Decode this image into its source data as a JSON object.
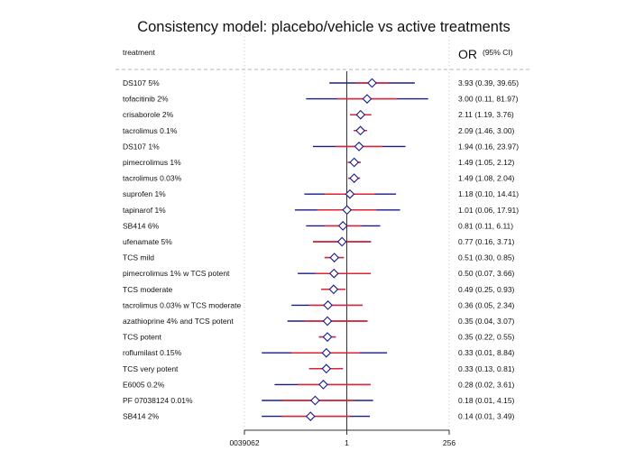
{
  "chart_data": {
    "type": "forest",
    "title": "Consistency model: placebo/vehicle vs active treatments",
    "column_header_left": "treatment",
    "column_header_or": "OR",
    "column_header_ci": "(95% CI)",
    "x_scale": "log2",
    "xlim_log2": [
      -8,
      8
    ],
    "reference_value": 1,
    "x_ticks": [
      {
        "value_log2": -8,
        "label": "0039062"
      },
      {
        "value_log2": 0,
        "label": "1"
      },
      {
        "value_log2": 8,
        "label": "256"
      }
    ],
    "colors": {
      "ci_line": "#1a1a8c",
      "ci_inner": "#e8202a",
      "marker": "#1a1a8c",
      "axis": "#333333",
      "grid": "#c8c8c8"
    },
    "rows": [
      {
        "label": "DS107 5%",
        "or": 3.93,
        "lo": 0.39,
        "hi": 39.65,
        "inner_lo": 1.6,
        "inner_hi": 9.7,
        "text": "3.93 (0.39, 39.65)"
      },
      {
        "label": "tofacitinib 2%",
        "or": 3.0,
        "lo": 0.11,
        "hi": 81.97,
        "inner_lo": 0.6,
        "inner_hi": 15,
        "text": "3.00 (0.11, 81.97)"
      },
      {
        "label": "crisaborole 2%",
        "or": 2.11,
        "lo": 1.19,
        "hi": 3.76,
        "inner_lo": 1.19,
        "inner_hi": 3.76,
        "text": "2.11 (1.19, 3.76)"
      },
      {
        "label": "tacrolimus 0.1%",
        "or": 2.09,
        "lo": 1.46,
        "hi": 3.0,
        "inner_lo": 1.46,
        "inner_hi": 3.0,
        "text": "2.09 (1.46, 3.00)"
      },
      {
        "label": "DS107 1%",
        "or": 1.94,
        "lo": 0.16,
        "hi": 23.97,
        "inner_lo": 0.55,
        "inner_hi": 7,
        "text": "1.94 (0.16, 23.97)"
      },
      {
        "label": "pimecrolimus 1%",
        "or": 1.49,
        "lo": 1.05,
        "hi": 2.12,
        "inner_lo": 1.05,
        "inner_hi": 2.12,
        "text": "1.49 (1.05, 2.12)"
      },
      {
        "label": "tacrolimus 0.03%",
        "or": 1.49,
        "lo": 1.08,
        "hi": 2.04,
        "inner_lo": 1.08,
        "inner_hi": 2.04,
        "text": "1.49 (1.08, 2.04)"
      },
      {
        "label": "suprofen 1%",
        "or": 1.18,
        "lo": 0.1,
        "hi": 14.41,
        "inner_lo": 0.3,
        "inner_hi": 4.5,
        "text": "1.18 (0.10, 14.41)"
      },
      {
        "label": "tapinarof 1%",
        "or": 1.01,
        "lo": 0.06,
        "hi": 17.91,
        "inner_lo": 0.2,
        "inner_hi": 5,
        "text": "1.01 (0.06, 17.91)"
      },
      {
        "label": "SB414 6%",
        "or": 0.81,
        "lo": 0.11,
        "hi": 6.11,
        "inner_lo": 0.3,
        "inner_hi": 2.2,
        "text": "0.81 (0.11, 6.11)"
      },
      {
        "label": "ufenamate 5%",
        "or": 0.77,
        "lo": 0.16,
        "hi": 3.71,
        "inner_lo": 0.16,
        "inner_hi": 3.71,
        "text": "0.77 (0.16, 3.71)"
      },
      {
        "label": "TCS mild",
        "or": 0.51,
        "lo": 0.3,
        "hi": 0.85,
        "inner_lo": 0.3,
        "inner_hi": 0.85,
        "text": "0.51 (0.30, 0.85)"
      },
      {
        "label": "pimecrolimus 1% w TCS potent",
        "or": 0.5,
        "lo": 0.07,
        "hi": 3.66,
        "inner_lo": 0.18,
        "inner_hi": 3.66,
        "text": "0.50 (0.07, 3.66)"
      },
      {
        "label": "TCS moderate",
        "or": 0.49,
        "lo": 0.25,
        "hi": 0.93,
        "inner_lo": 0.25,
        "inner_hi": 0.93,
        "text": "0.49 (0.25, 0.93)"
      },
      {
        "label": "tacrolimus 0.03% w TCS moderate",
        "or": 0.36,
        "lo": 0.05,
        "hi": 2.34,
        "inner_lo": 0.13,
        "inner_hi": 2.34,
        "text": "0.36 (0.05, 2.34)"
      },
      {
        "label": "azathioprine 4% and TCS potent",
        "or": 0.35,
        "lo": 0.04,
        "hi": 3.07,
        "inner_lo": 0.1,
        "inner_hi": 3.07,
        "text": "0.35 (0.04, 3.07)"
      },
      {
        "label": "TCS potent",
        "or": 0.35,
        "lo": 0.22,
        "hi": 0.55,
        "inner_lo": 0.22,
        "inner_hi": 0.55,
        "text": "0.35 (0.22, 0.55)"
      },
      {
        "label": "roflumilast 0.15%",
        "or": 0.33,
        "lo": 0.01,
        "hi": 8.84,
        "inner_lo": 0.05,
        "inner_hi": 2,
        "text": "0.33 (0.01, 8.84)"
      },
      {
        "label": "TCS very potent",
        "or": 0.33,
        "lo": 0.13,
        "hi": 0.81,
        "inner_lo": 0.13,
        "inner_hi": 0.81,
        "text": "0.33 (0.13, 0.81)"
      },
      {
        "label": "E6005 0.2%",
        "or": 0.28,
        "lo": 0.02,
        "hi": 3.61,
        "inner_lo": 0.07,
        "inner_hi": 3.61,
        "text": "0.28 (0.02, 3.61)"
      },
      {
        "label": "PF 07038124 0.01%",
        "or": 0.18,
        "lo": 0.01,
        "hi": 4.15,
        "inner_lo": 0.03,
        "inner_hi": 1.5,
        "text": "0.18 (0.01, 4.15)"
      },
      {
        "label": "SB414 2%",
        "or": 0.14,
        "lo": 0.01,
        "hi": 3.49,
        "inner_lo": 0.03,
        "inner_hi": 1.2,
        "text": "0.14 (0.01, 3.49)"
      }
    ]
  }
}
